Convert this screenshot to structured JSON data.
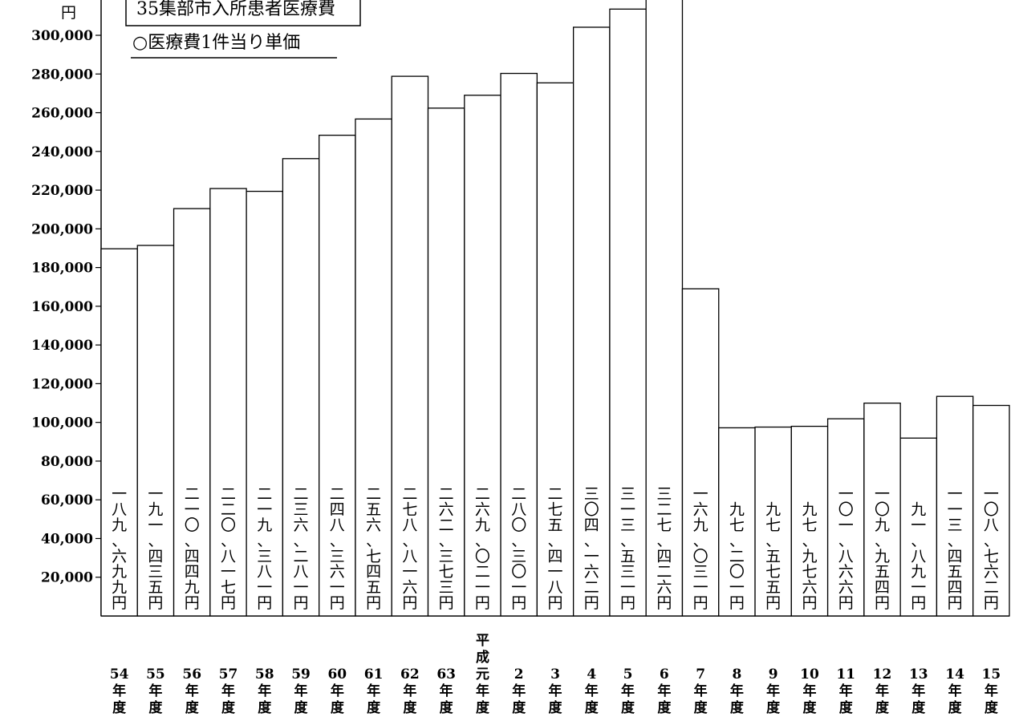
{
  "chart_data": {
    "type": "bar",
    "unit_label": "円",
    "legend": {
      "box_text": "35集部市入所患者医療費",
      "series_label": "○医療費1件当り単価"
    },
    "y_ticks": [
      "20,000",
      "40,000",
      "60,000",
      "80,000",
      "100,000",
      "120,000",
      "140,000",
      "160,000",
      "180,000",
      "200,000",
      "220,000",
      "240,000",
      "260,000",
      "280,000",
      "300,000"
    ],
    "ylim": [
      0,
      330000
    ],
    "grid": false,
    "categories": [
      [
        "54",
        "年",
        "度"
      ],
      [
        "55",
        "年",
        "度"
      ],
      [
        "56",
        "年",
        "度"
      ],
      [
        "57",
        "年",
        "度"
      ],
      [
        "58",
        "年",
        "度"
      ],
      [
        "59",
        "年",
        "度"
      ],
      [
        "60",
        "年",
        "度"
      ],
      [
        "61",
        "年",
        "度"
      ],
      [
        "62",
        "年",
        "度"
      ],
      [
        "63",
        "年",
        "度"
      ],
      [
        "平",
        "成",
        "元",
        "年",
        "度"
      ],
      [
        "2",
        "年",
        "度"
      ],
      [
        "3",
        "年",
        "度"
      ],
      [
        "4",
        "年",
        "度"
      ],
      [
        "5",
        "年",
        "度"
      ],
      [
        "6",
        "年",
        "度"
      ],
      [
        "7",
        "年",
        "度"
      ],
      [
        "8",
        "年",
        "度"
      ],
      [
        "9",
        "年",
        "度"
      ],
      [
        "10",
        "年",
        "度"
      ],
      [
        "11",
        "年",
        "度"
      ],
      [
        "12",
        "年",
        "度"
      ],
      [
        "13",
        "年",
        "度"
      ],
      [
        "14",
        "年",
        "度"
      ],
      [
        "15",
        "年",
        "度"
      ]
    ],
    "values": [
      189699,
      191435,
      210449,
      220817,
      219381,
      236281,
      248361,
      256745,
      278816,
      262373,
      269021,
      280301,
      275418,
      304162,
      313531,
      327426,
      169031,
      97201,
      97575,
      97976,
      101866,
      109954,
      91891,
      113454,
      108762
    ],
    "value_labels": [
      "一八九、六九九円",
      "一九一、四三五円",
      "二一〇、四四九円",
      "二二〇、八一七円",
      "二一九、三八一円",
      "二三六、二八一円",
      "二四八、三六一円",
      "二五六、七四五円",
      "二七八、八一六円",
      "二六二、三七三円",
      "二六九、〇二一円",
      "二八〇、三〇一円",
      "二七五、四一八円",
      "三〇四、一六二円",
      "三一三、五三一円",
      "三二七、四二六円",
      "一六九、〇三一円",
      "九七、二〇一円",
      "九七、五七五円",
      "九七、九七六円",
      "一〇一、八六六円",
      "一〇九、九五四円",
      "九一、八九一円",
      "一一三、四五四円",
      "一〇八、七六二円"
    ]
  }
}
